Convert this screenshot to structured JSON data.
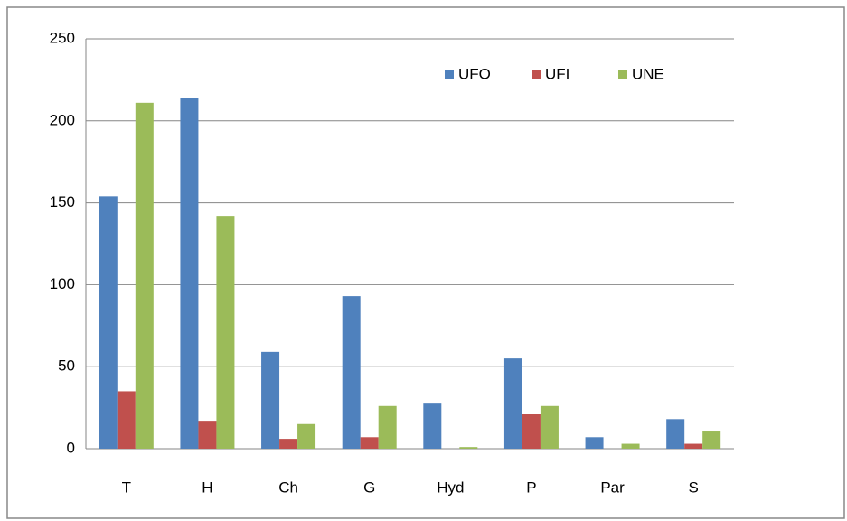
{
  "chart_data": {
    "type": "bar",
    "categories": [
      "T",
      "H",
      "Ch",
      "G",
      "Hyd",
      "P",
      "Par",
      "S"
    ],
    "series": [
      {
        "name": "UFO",
        "color": "#4f81bd",
        "values": [
          154,
          214,
          59,
          93,
          28,
          55,
          7,
          18
        ]
      },
      {
        "name": "UFI",
        "color": "#c0504d",
        "values": [
          35,
          17,
          6,
          7,
          0,
          21,
          0,
          3
        ]
      },
      {
        "name": "UNE",
        "color": "#9bbb59",
        "values": [
          211,
          142,
          15,
          26,
          1,
          26,
          3,
          11
        ]
      }
    ],
    "ylim": [
      0,
      250
    ],
    "yticks": [
      0,
      50,
      100,
      150,
      200,
      250
    ],
    "grid": true,
    "legend": "top-right"
  }
}
